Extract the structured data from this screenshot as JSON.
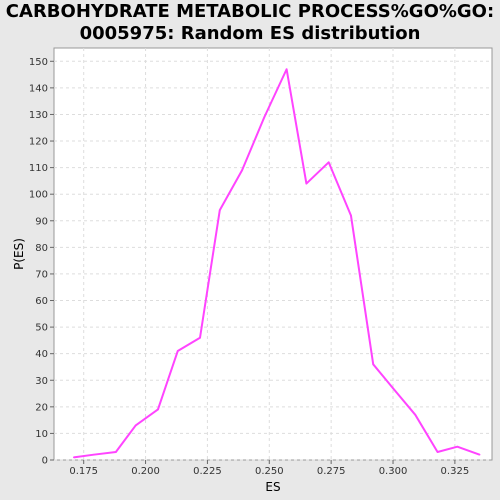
{
  "chart_data": {
    "type": "line",
    "title_line1": "CARBOHYDRATE METABOLIC PROCESS%GO%GO:",
    "title_line2": "0005975: Random ES distribution",
    "xlabel": "ES",
    "ylabel": "P(ES)",
    "xlim": [
      0.163,
      0.34
    ],
    "ylim": [
      0,
      155
    ],
    "x_ticks": [
      0.175,
      0.2,
      0.225,
      0.25,
      0.275,
      0.3,
      0.325
    ],
    "x_tick_labels": [
      "0.175",
      "0.200",
      "0.225",
      "0.250",
      "0.275",
      "0.300",
      "0.325"
    ],
    "y_ticks": [
      0,
      10,
      20,
      30,
      40,
      50,
      60,
      70,
      80,
      90,
      100,
      110,
      120,
      130,
      140,
      150
    ],
    "y_tick_labels": [
      "0",
      "10",
      "20",
      "30",
      "40",
      "50",
      "60",
      "70",
      "80",
      "90",
      "100",
      "110",
      "120",
      "130",
      "140",
      "150"
    ],
    "grid": true,
    "series_color": "#ff44ff",
    "series": [
      {
        "x": [
          0.171,
          0.179,
          0.188,
          0.196,
          0.205,
          0.213,
          0.222,
          0.23,
          0.239,
          0.248,
          0.257,
          0.265,
          0.274,
          0.283,
          0.292,
          0.3,
          0.309,
          0.318,
          0.326,
          0.335
        ],
        "y": [
          1,
          2,
          3,
          13,
          19,
          41,
          46,
          94,
          109,
          129,
          147,
          104,
          112,
          92,
          36,
          27,
          17,
          3,
          5,
          2
        ]
      }
    ]
  }
}
